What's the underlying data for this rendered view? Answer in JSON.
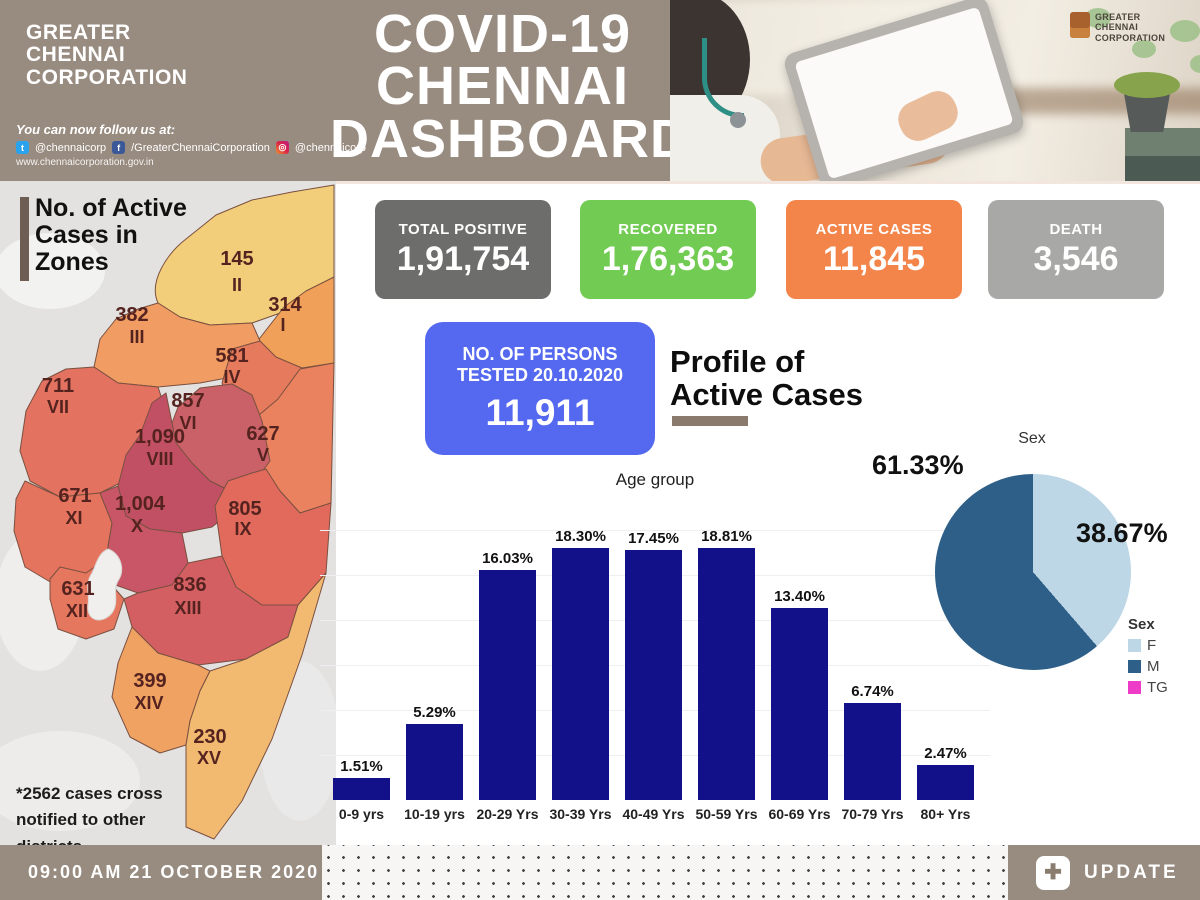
{
  "header": {
    "logo_lines": [
      "GREATER",
      "CHENNAI",
      "CORPORATION"
    ],
    "follow_label": "You can now follow us at:",
    "social": {
      "twitter_handle": "@chennaicorp",
      "facebook_handle": "/GreaterChennaiCorporation",
      "instagram_handle": "@chennaicorp",
      "website": "www.chennaicorporation.gov.in"
    },
    "title_lines": [
      "COVID-19",
      "CHENNAI",
      "DASHBOARD"
    ],
    "photo_logo_lines": [
      "GREATER",
      "CHENNAI",
      "CORPORATION"
    ]
  },
  "stats": [
    {
      "label": "TOTAL POSITIVE",
      "value": "1,91,754",
      "color": "#6d6e6c"
    },
    {
      "label": "RECOVERED",
      "value": "1,76,363",
      "color": "#72cb52"
    },
    {
      "label": "ACTIVE CASES",
      "value": "11,845",
      "color": "#f3854b"
    },
    {
      "label": "DEATH",
      "value": "3,546",
      "color": "#a8a8a6"
    }
  ],
  "tested_card": {
    "line1": "NO. OF PERSONS",
    "line2": "TESTED 20.10.2020",
    "value": "11,911",
    "color": "#5468f0"
  },
  "profile_heading": {
    "line1": "Profile of",
    "line2": "Active Cases"
  },
  "map": {
    "heading_lines": [
      "No. of Active",
      "Cases in",
      "Zones"
    ],
    "note_lines": [
      "*2562 cases cross",
      "notified to other",
      "districts"
    ],
    "zones": [
      {
        "roman": "II",
        "cases": "145",
        "color": "#f2ce7b"
      },
      {
        "roman": "I",
        "cases": "314",
        "color": "#f0a058"
      },
      {
        "roman": "III",
        "cases": "382",
        "color": "#f09c62"
      },
      {
        "roman": "IV",
        "cases": "581",
        "color": "#e57a5c"
      },
      {
        "roman": "V",
        "cases": "627",
        "color": "#ea825f"
      },
      {
        "roman": "VI",
        "cases": "857",
        "color": "#ca6168"
      },
      {
        "roman": "VII",
        "cases": "711",
        "color": "#e37261"
      },
      {
        "roman": "VIII",
        "cases": "1,090",
        "color": "#c25064"
      },
      {
        "roman": "IX",
        "cases": "805",
        "color": "#e16a5d"
      },
      {
        "roman": "X",
        "cases": "1,004",
        "color": "#c95666"
      },
      {
        "roman": "XI",
        "cases": "671",
        "color": "#e5745e"
      },
      {
        "roman": "XII",
        "cases": "631",
        "color": "#e6775f"
      },
      {
        "roman": "XIII",
        "cases": "836",
        "color": "#d45f63"
      },
      {
        "roman": "XIV",
        "cases": "399",
        "color": "#f0a263"
      },
      {
        "roman": "XV",
        "cases": "230",
        "color": "#f2ba70"
      }
    ]
  },
  "chart_data": [
    {
      "type": "bar",
      "title": "Age group",
      "categories": [
        "0-9 yrs",
        "10-19 yrs",
        "20-29 Yrs",
        "30-39 Yrs",
        "40-49 Yrs",
        "50-59 Yrs",
        "60-69 Yrs",
        "70-79 Yrs",
        "80+ Yrs"
      ],
      "values": [
        1.51,
        5.29,
        16.03,
        18.3,
        17.45,
        18.81,
        13.4,
        6.74,
        2.47
      ],
      "labels": [
        "1.51%",
        "5.29%",
        "16.03%",
        "18.30%",
        "17.45%",
        "18.81%",
        "13.40%",
        "6.74%",
        "2.47%"
      ],
      "bar_color": "#12118a",
      "xlabel": "",
      "ylabel": "",
      "ylim": [
        0,
        19
      ],
      "grid": true,
      "legend_position": "none"
    },
    {
      "type": "pie",
      "title": "Sex",
      "legend_title": "Sex",
      "legend_position": "right-bottom",
      "slices": [
        {
          "name": "F",
          "value": 38.67,
          "label": "38.67%",
          "color": "#bdd7e7"
        },
        {
          "name": "M",
          "value": 61.33,
          "label": "61.33%",
          "color": "#2e5f88"
        },
        {
          "name": "TG",
          "value": 0,
          "label": "",
          "color": "#ee3cc8"
        }
      ]
    }
  ],
  "footer": {
    "timestamp": "09:00 AM 21 OCTOBER 2020",
    "update_label": "UPDATE"
  }
}
